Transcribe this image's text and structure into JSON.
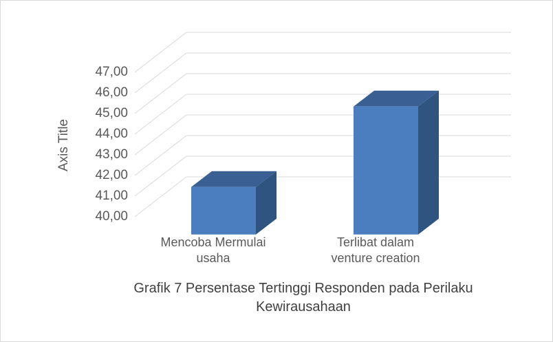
{
  "chart_data": {
    "type": "bar3d",
    "title": "Grafik 7 Persentase Tertinggi Responden pada Perilaku Kewirausahaan",
    "y_label": "Axis Title",
    "categories": [
      "Mencoba Mermulai usaha",
      "Terlibat dalam venture creation"
    ],
    "values": [
      42.3,
      46.2
    ],
    "color": "#4a7ebf",
    "ylim": [
      40,
      47
    ],
    "yticks": [
      {
        "value": 40,
        "label": "40,00"
      },
      {
        "value": 41,
        "label": "41,00"
      },
      {
        "value": 42,
        "label": "42,00"
      },
      {
        "value": 43,
        "label": "43,00"
      },
      {
        "value": 44,
        "label": "44,00"
      },
      {
        "value": 45,
        "label": "45,00"
      },
      {
        "value": 46,
        "label": "46,00"
      },
      {
        "value": 47,
        "label": "47,00"
      }
    ],
    "grid": true
  }
}
